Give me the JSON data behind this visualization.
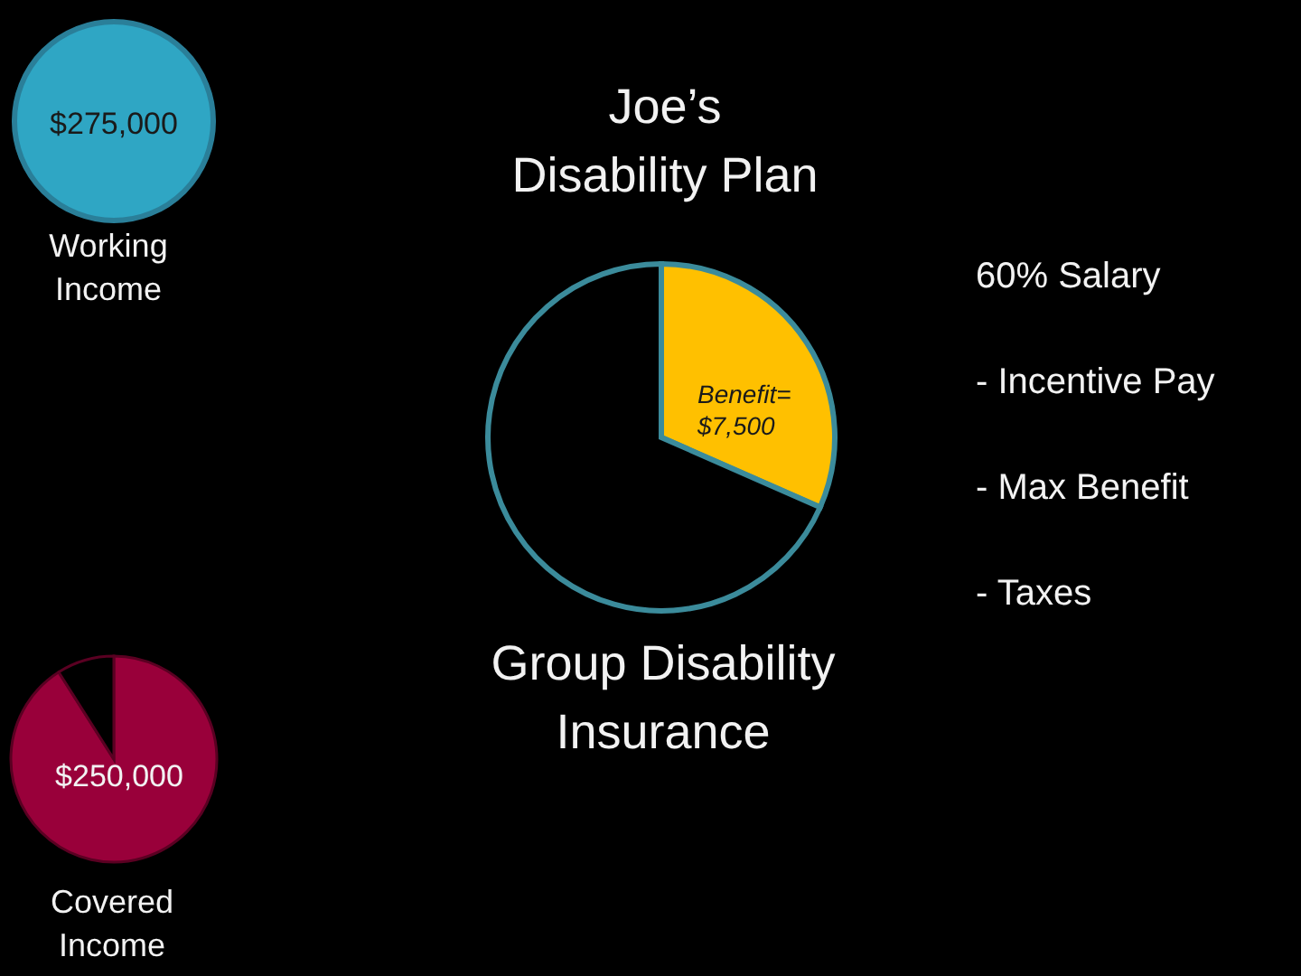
{
  "chart_data": [
    {
      "type": "pie",
      "categories": [
        null
      ],
      "values": [
        100
      ],
      "colors": [
        "#2fa6c4"
      ],
      "annotations": [
        "$275,000",
        "Working Income"
      ]
    },
    {
      "type": "pie",
      "title": "Joe’s Disability Plan",
      "xlabel": "Group Disability Insurance",
      "categories": [
        null,
        null
      ],
      "values": [
        31.6,
        68.4
      ],
      "colors": [
        "#ffc000",
        "#000000"
      ],
      "annotations": [
        "Benefit= $7,500",
        "60% Salary",
        "- Incentive Pay",
        "- Max Benefit",
        "- Taxes"
      ]
    },
    {
      "type": "pie",
      "categories": [
        null,
        null
      ],
      "values": [
        91,
        9
      ],
      "colors": [
        "#99003a",
        "#000000"
      ],
      "annotations": [
        "$250,000",
        "Covered Income"
      ]
    }
  ]
}
